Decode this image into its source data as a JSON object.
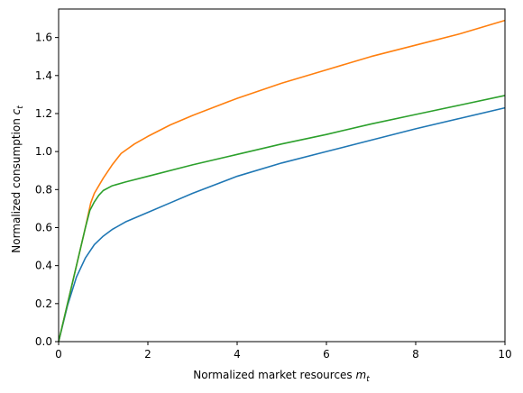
{
  "chart_data": {
    "type": "line",
    "title": "",
    "xlabel": {
      "text": "Normalized market resources ",
      "var": "m",
      "sub": "t"
    },
    "ylabel": {
      "text": "Normalized consumption ",
      "var": "c",
      "sub": "t"
    },
    "xlim": [
      0,
      10
    ],
    "ylim": [
      0,
      1.75
    ],
    "xticks": [
      0,
      2,
      4,
      6,
      8,
      10
    ],
    "xtick_labels": [
      "0",
      "2",
      "4",
      "6",
      "8",
      "10"
    ],
    "yticks": [
      0.0,
      0.2,
      0.4,
      0.6,
      0.8,
      1.0,
      1.2,
      1.4,
      1.6
    ],
    "ytick_labels": [
      "0.0",
      "0.2",
      "0.4",
      "0.6",
      "0.8",
      "1.0",
      "1.2",
      "1.4",
      "1.6"
    ],
    "grid": false,
    "legend": "none",
    "series": [
      {
        "color": "#1f77b4",
        "x": [
          0,
          0.2,
          0.4,
          0.6,
          0.8,
          1.0,
          1.2,
          1.5,
          2.0,
          2.5,
          3.0,
          4.0,
          5.0,
          6.0,
          7.0,
          8.0,
          9.0,
          10.0
        ],
        "y": [
          0,
          0.19,
          0.34,
          0.44,
          0.51,
          0.555,
          0.59,
          0.63,
          0.68,
          0.73,
          0.78,
          0.87,
          0.94,
          1.0,
          1.06,
          1.12,
          1.175,
          1.23
        ]
      },
      {
        "color": "#ff7f0e",
        "x": [
          0,
          0.2,
          0.4,
          0.6,
          0.72,
          0.8,
          1.0,
          1.2,
          1.4,
          1.7,
          2.0,
          2.5,
          3.0,
          4.0,
          5.0,
          6.0,
          7.0,
          8.0,
          9.0,
          10.0
        ],
        "y": [
          0,
          0.2,
          0.4,
          0.6,
          0.73,
          0.78,
          0.86,
          0.93,
          0.99,
          1.04,
          1.08,
          1.14,
          1.19,
          1.28,
          1.36,
          1.43,
          1.5,
          1.56,
          1.62,
          1.69
        ]
      },
      {
        "color": "#2ca02c",
        "x": [
          0,
          0.2,
          0.4,
          0.6,
          0.7,
          0.8,
          0.9,
          1.0,
          1.2,
          1.5,
          2.0,
          3.0,
          4.0,
          5.0,
          6.0,
          7.0,
          8.0,
          9.0,
          10.0
        ],
        "y": [
          0,
          0.2,
          0.4,
          0.6,
          0.69,
          0.735,
          0.77,
          0.795,
          0.82,
          0.84,
          0.87,
          0.93,
          0.985,
          1.04,
          1.09,
          1.145,
          1.195,
          1.245,
          1.295
        ]
      }
    ]
  }
}
